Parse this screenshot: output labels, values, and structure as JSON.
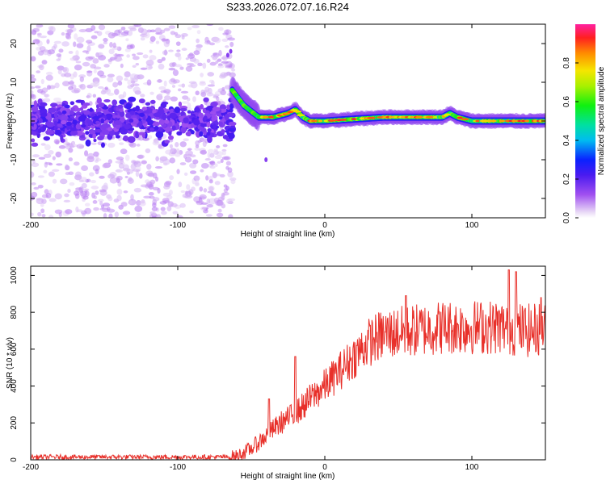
{
  "title": "S233.2026.072.07.16.R24",
  "chart_data": [
    {
      "type": "heatmap",
      "name": "spectrogram",
      "xlabel": "Height of straight line (km)",
      "ylabel": "Frequency (Hz)",
      "xlim": [
        -200,
        150
      ],
      "ylim": [
        -25,
        25
      ],
      "xticks": [
        -200,
        -100,
        0,
        100
      ],
      "yticks": [
        -20,
        -10,
        0,
        10,
        20
      ],
      "colorbar": {
        "label": "Normalized spectral amplitude",
        "range": [
          0.0,
          1.0
        ],
        "ticks": [
          0.0,
          0.2,
          0.4,
          0.6,
          0.8
        ]
      },
      "ridge": {
        "description_points_x": [
          -63,
          -55,
          -45,
          -35,
          -25,
          -20,
          -15,
          -10,
          0,
          20,
          40,
          60,
          80,
          85,
          90,
          100,
          120,
          150
        ],
        "description_points_freq": [
          8,
          4,
          1,
          1,
          2,
          3,
          1,
          0,
          0,
          0.5,
          1,
          1,
          1,
          2,
          1,
          0,
          0,
          0
        ]
      }
    },
    {
      "type": "line",
      "name": "snr",
      "xlabel": "Height of straight line (km)",
      "ylabel": "SNR (10 * v/v)",
      "xlim": [
        -200,
        150
      ],
      "ylim": [
        0,
        1050
      ],
      "xticks": [
        -200,
        -100,
        0,
        100
      ],
      "yticks": [
        0,
        200,
        400,
        600,
        800,
        1000
      ],
      "series": [
        {
          "name": "SNR",
          "color": "#e8302a",
          "trend_x": [
            -200,
            -65,
            -60,
            -50,
            -40,
            -30,
            -20,
            -10,
            0,
            10,
            20,
            30,
            40,
            60,
            80,
            100,
            120,
            140,
            150
          ],
          "trend_y": [
            15,
            15,
            20,
            60,
            130,
            200,
            250,
            330,
            400,
            480,
            560,
            640,
            680,
            700,
            720,
            720,
            720,
            700,
            720
          ],
          "peaks_x": [
            -38,
            -20,
            55,
            125,
            130,
            147
          ],
          "peaks_y": [
            330,
            560,
            890,
            1030,
            1020,
            880
          ]
        }
      ]
    }
  ]
}
